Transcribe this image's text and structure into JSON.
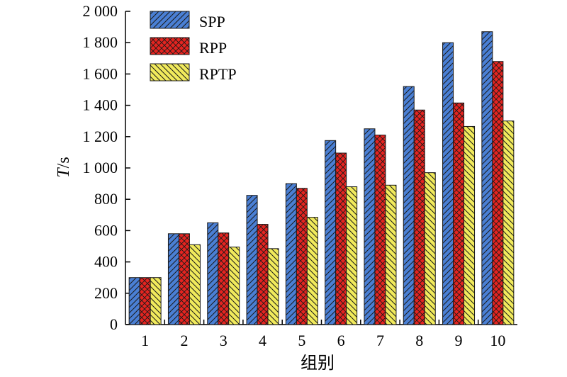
{
  "chart_data": {
    "type": "bar",
    "title": "",
    "xlabel": "组别",
    "ylabel": {
      "italic": "T",
      "rest": "/s"
    },
    "categories": [
      "1",
      "2",
      "3",
      "4",
      "5",
      "6",
      "7",
      "8",
      "9",
      "10"
    ],
    "ylim": [
      0,
      2000
    ],
    "yticks": [
      0,
      200,
      400,
      600,
      800,
      1000,
      1200,
      1400,
      1600,
      1800,
      2000
    ],
    "ytick_labels": [
      "0",
      "200",
      "400",
      "600",
      "800",
      "1 000",
      "1 200",
      "1 400",
      "1 600",
      "1 800",
      "2 000"
    ],
    "grid": false,
    "legend_position": "top-left",
    "series": [
      {
        "name": "SPP",
        "color": "#4a7fd4",
        "pattern": "diagonal-hatch",
        "values": [
          300,
          580,
          650,
          825,
          900,
          1175,
          1250,
          1520,
          1800,
          1870
        ]
      },
      {
        "name": "RPP",
        "color": "#e52420",
        "pattern": "cross-hatch",
        "values": [
          300,
          580,
          585,
          640,
          870,
          1095,
          1210,
          1370,
          1415,
          1680
        ]
      },
      {
        "name": "RPTP",
        "color": "#f1ea5c",
        "pattern": "reverse-diagonal-hatch",
        "values": [
          300,
          510,
          495,
          485,
          685,
          880,
          890,
          970,
          1265,
          1300
        ]
      }
    ]
  }
}
